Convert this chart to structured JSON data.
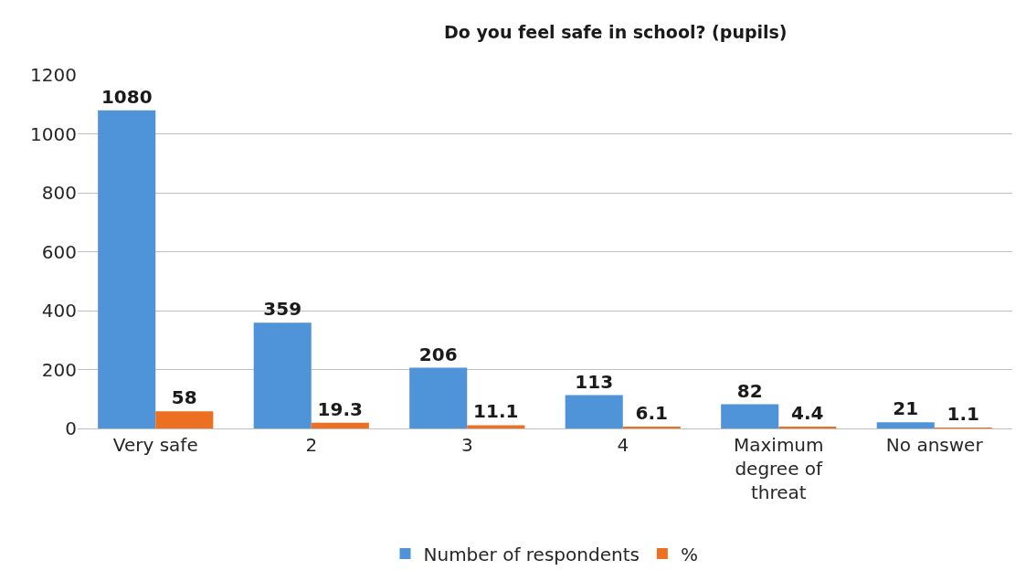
{
  "chart_data": {
    "type": "bar",
    "title": "Do you feel safe in school? (pupils)",
    "categories": [
      "Very safe",
      "2",
      "3",
      "4",
      "Maximum degree of threat",
      "No answer"
    ],
    "series": [
      {
        "name": "Number of respondents",
        "color": "#4f93d8",
        "values": [
          1080,
          359,
          206,
          113,
          82,
          21
        ]
      },
      {
        "name": "%",
        "color": "#ed7022",
        "values": [
          58,
          19.3,
          11.1,
          6.1,
          4.4,
          1.1
        ]
      }
    ],
    "ylim": [
      0,
      1200
    ],
    "yticks": [
      0,
      200,
      400,
      600,
      800,
      1000,
      1200
    ],
    "grid": "y",
    "legend": "bottom",
    "data_labels": true
  }
}
